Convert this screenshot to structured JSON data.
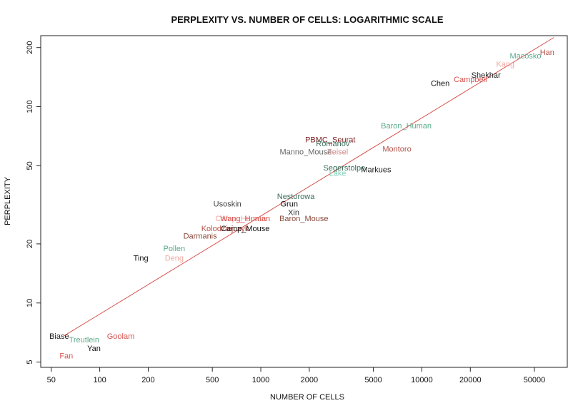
{
  "chart_data": {
    "type": "scatter",
    "title": "PERPLEXITY VS. NUMBER OF CELLS: LOGARITHMIC SCALE",
    "xlabel": "NUMBER OF CELLS",
    "ylabel": "PERPLEXITY",
    "x_scale": "log",
    "y_scale": "log",
    "xlim": [
      43,
      80000
    ],
    "ylim": [
      4.7,
      230
    ],
    "x_ticks": [
      50,
      100,
      200,
      500,
      1000,
      2000,
      5000,
      10000,
      20000,
      50000
    ],
    "x_tick_labels": [
      "50",
      "100",
      "200",
      "500",
      "1000",
      "2000",
      "5000",
      "10000",
      "20000",
      "50000"
    ],
    "y_ticks": [
      5,
      10,
      20,
      50,
      100,
      200
    ],
    "y_tick_labels": [
      "5",
      "10",
      "20",
      "50",
      "100",
      "200"
    ],
    "grid": false,
    "fit_line": {
      "x": [
        60,
        66000
      ],
      "y": [
        6.8,
        225
      ],
      "color": "#d9534f"
    },
    "points": [
      {
        "label": "Han",
        "x": 60000,
        "y": 190,
        "color": "#b5524a"
      },
      {
        "label": "Macosko",
        "x": 44000,
        "y": 182,
        "color": "#5aaa8a"
      },
      {
        "label": "Kang",
        "x": 33000,
        "y": 165,
        "color": "#f0a8a0"
      },
      {
        "label": "Shekhar",
        "x": 25000,
        "y": 145,
        "color": "#222222"
      },
      {
        "label": "Campbell",
        "x": 20000,
        "y": 138,
        "color": "#d9534f"
      },
      {
        "label": "Chen",
        "x": 13000,
        "y": 132,
        "color": "#111111"
      },
      {
        "label": "Baron_Human",
        "x": 8000,
        "y": 80,
        "color": "#5aaa8a"
      },
      {
        "label": "PBMC_Seurat",
        "x": 2700,
        "y": 68,
        "color": "#7a1f1f"
      },
      {
        "label": "Romanov",
        "x": 2800,
        "y": 65,
        "color": "#3a6e5c"
      },
      {
        "label": "Montoro",
        "x": 7000,
        "y": 61,
        "color": "#b5524a"
      },
      {
        "label": "Manno_Mouse",
        "x": 1900,
        "y": 59,
        "color": "#666666"
      },
      {
        "label": "Zeisel",
        "x": 3000,
        "y": 59,
        "color": "#d48a8a"
      },
      {
        "label": "Segerstolpe",
        "x": 3300,
        "y": 49,
        "color": "#3a6e5c"
      },
      {
        "label": "Markues",
        "x": 5200,
        "y": 48,
        "color": "#222222"
      },
      {
        "label": "Lake",
        "x": 3000,
        "y": 46,
        "color": "#7fd0b8"
      },
      {
        "label": "Nestorowa",
        "x": 1650,
        "y": 35,
        "color": "#3a6e5c"
      },
      {
        "label": "Usoskin",
        "x": 620,
        "y": 32,
        "color": "#444444"
      },
      {
        "label": "Grun",
        "x": 1500,
        "y": 32,
        "color": "#111111"
      },
      {
        "label": "Xin",
        "x": 1600,
        "y": 29,
        "color": "#333333"
      },
      {
        "label": "Baron_Mouse",
        "x": 1850,
        "y": 27,
        "color": "#8a4a3a"
      },
      {
        "label": "Camp_Human",
        "x": 750,
        "y": 27,
        "color": "#f0a8a0"
      },
      {
        "label": "Wang_Human",
        "x": 800,
        "y": 27,
        "color": "#d9534f"
      },
      {
        "label": "Kolodziejczyk",
        "x": 600,
        "y": 24,
        "color": "#b5524a"
      },
      {
        "label": "Camp_Mouse",
        "x": 800,
        "y": 24,
        "color": "#111111"
      },
      {
        "label": "Darmanis",
        "x": 420,
        "y": 22,
        "color": "#8a4a3a"
      },
      {
        "label": "Pollen",
        "x": 290,
        "y": 19,
        "color": "#5aaa8a"
      },
      {
        "label": "Ting",
        "x": 180,
        "y": 17,
        "color": "#111111"
      },
      {
        "label": "Deng",
        "x": 290,
        "y": 17,
        "color": "#f0a8a0"
      },
      {
        "label": "Biase",
        "x": 56,
        "y": 6.8,
        "color": "#222222"
      },
      {
        "label": "Treutlein",
        "x": 80,
        "y": 6.5,
        "color": "#5aaa8a"
      },
      {
        "label": "Goolam",
        "x": 135,
        "y": 6.8,
        "color": "#d9534f"
      },
      {
        "label": "Yan",
        "x": 92,
        "y": 5.9,
        "color": "#111111"
      },
      {
        "label": "Fan",
        "x": 62,
        "y": 5.4,
        "color": "#d9534f"
      }
    ]
  }
}
